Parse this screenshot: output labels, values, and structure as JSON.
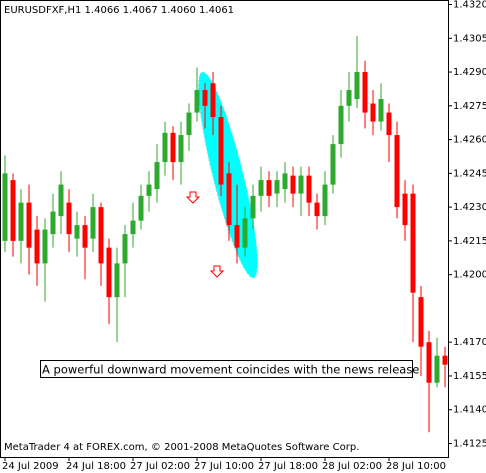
{
  "chart_data": {
    "type": "candlestick",
    "title": "EURUSDFXF,H1  1.4066 1.4067 1.4060 1.4061",
    "annotation": "A powerful downward movement coincides with the news release",
    "footer": "MetaTrader 4 at FOREX.com, © 2001-2008 MetaQuotes Software Corp.",
    "categories": [
      "24 Jul 2009",
      null,
      null,
      null,
      null,
      null,
      null,
      null,
      "24 Jul 18:00",
      null,
      null,
      null,
      null,
      null,
      null,
      null,
      "27 Jul 02:00",
      null,
      null,
      null,
      null,
      null,
      null,
      null,
      "27 Jul 10:00",
      null,
      null,
      null,
      null,
      null,
      null,
      null,
      "27 Jul 18:00",
      null,
      null,
      null,
      null,
      null,
      null,
      null,
      "28 Jul 02:00",
      null,
      null,
      null,
      null,
      null,
      null,
      null,
      "28 Jul 10:00",
      null,
      null,
      null,
      null,
      null,
      null,
      null
    ],
    "open": [
      1.4215,
      1.4242,
      1.4215,
      1.4232,
      1.422,
      1.4205,
      1.4218,
      1.4226,
      1.4232,
      1.4216,
      1.4222,
      1.4216,
      1.423,
      1.4212,
      1.419,
      1.4205,
      1.4218,
      1.4224,
      1.4235,
      1.4238,
      1.425,
      1.4263,
      1.425,
      1.4262,
      1.4272,
      1.4282,
      1.4285,
      1.427,
      1.4245,
      1.4222,
      1.4212,
      1.4225,
      1.4235,
      1.4242,
      1.4236,
      1.4238,
      1.4244,
      1.4236,
      1.4244,
      1.4232,
      1.4226,
      1.424,
      1.4258,
      1.4275,
      1.4278,
      1.429,
      1.4276,
      1.4268,
      1.4272,
      1.4262,
      1.4236,
      1.4236,
      1.419,
      1.417,
      1.4152,
      1.4164
    ],
    "high": [
      1.4253,
      1.4245,
      1.4238,
      1.424,
      1.4226,
      1.4225,
      1.4236,
      1.4246,
      1.4238,
      1.4228,
      1.4226,
      1.4236,
      1.4232,
      1.4216,
      1.4212,
      1.4222,
      1.4232,
      1.424,
      1.4246,
      1.4258,
      1.4268,
      1.4266,
      1.4268,
      1.4276,
      1.4292,
      1.4285,
      1.429,
      1.4275,
      1.425,
      1.424,
      1.423,
      1.424,
      1.4248,
      1.4246,
      1.4246,
      1.425,
      1.4248,
      1.4248,
      1.4248,
      1.4236,
      1.4246,
      1.4262,
      1.4282,
      1.429,
      1.4306,
      1.4295,
      1.4282,
      1.4285,
      1.4276,
      1.4268,
      1.4242,
      1.424,
      1.4195,
      1.4175,
      1.4172,
      1.4168
    ],
    "low": [
      1.421,
      1.4208,
      1.4205,
      1.42,
      1.4195,
      1.4188,
      1.4212,
      1.4218,
      1.421,
      1.4208,
      1.4198,
      1.421,
      1.4195,
      1.4178,
      1.417,
      1.419,
      1.4212,
      1.422,
      1.4228,
      1.4232,
      1.4244,
      1.4242,
      1.424,
      1.4255,
      1.4268,
      1.4265,
      1.4262,
      1.4235,
      1.4215,
      1.4205,
      1.4208,
      1.422,
      1.4228,
      1.423,
      1.423,
      1.4232,
      1.423,
      1.4226,
      1.4226,
      1.422,
      1.4222,
      1.4236,
      1.4252,
      1.4268,
      1.4274,
      1.4265,
      1.4262,
      1.4264,
      1.425,
      1.4225,
      1.4215,
      1.417,
      1.4155,
      1.413,
      1.415,
      1.415
    ],
    "close": [
      1.4245,
      1.4215,
      1.4232,
      1.4212,
      1.4205,
      1.422,
      1.4228,
      1.424,
      1.4218,
      1.4222,
      1.4212,
      1.423,
      1.4205,
      1.419,
      1.4205,
      1.4218,
      1.4224,
      1.4235,
      1.424,
      1.425,
      1.4263,
      1.425,
      1.4262,
      1.4272,
      1.4282,
      1.4275,
      1.427,
      1.424,
      1.4222,
      1.4212,
      1.4225,
      1.4235,
      1.4242,
      1.4235,
      1.4242,
      1.4245,
      1.4236,
      1.4244,
      1.4232,
      1.4226,
      1.424,
      1.4258,
      1.4275,
      1.4282,
      1.429,
      1.4272,
      1.4268,
      1.4278,
      1.4262,
      1.423,
      1.4222,
      1.4192,
      1.4168,
      1.4152,
      1.4164,
      1.416
    ],
    "up_color": "#2ea82e",
    "down_color": "#ff0000",
    "ylim": [
      1.4119,
      1.4322
    ],
    "yticks": [
      {
        "value": 1.432,
        "label": "1.4320"
      },
      1.4305,
      {
        "value": 1.429,
        "label": "1.4290"
      },
      1.4275,
      {
        "value": 1.426,
        "label": "1.4260"
      },
      1.4245,
      {
        "value": 1.423,
        "label": "1.4230"
      },
      1.4215,
      {
        "value": 1.42,
        "label": "1.4200"
      },
      {
        "value": 1.417,
        "label": "1.4170"
      },
      1.4155,
      {
        "value": 1.414,
        "label": "1.4140"
      },
      1.4125
    ]
  }
}
